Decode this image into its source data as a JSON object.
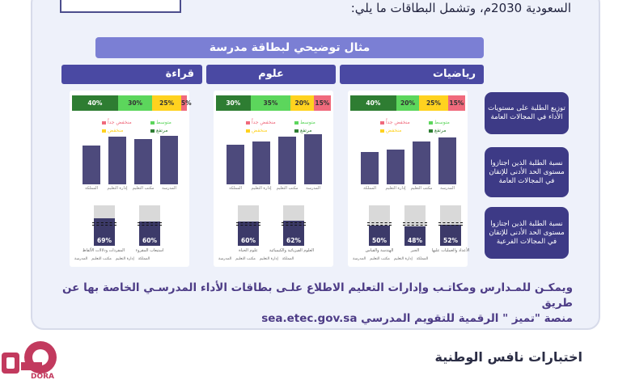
{
  "header": {
    "text": "السعودية 2030م، وتشمل البطاقات ما يلي:"
  },
  "card": {
    "title": "مثال توضيحي لبطاقة مدرسة",
    "columns": [
      "رياضيات",
      "علوم",
      "قراءة"
    ],
    "row_labels": [
      "توزيع الطلبة على مستويات الأداء في المجالات العامة",
      "نسبة الطلبة الذين اجتازوا مستوى الحد الأدنى للإتقان في المجالات العامة",
      "نسبة الطلبة الذين اجتازوا مستوى الحد الأدنى للإتقان في المجالات الفرعية"
    ],
    "legend": {
      "high": "مرتفع",
      "medium": "متوسط",
      "low": "منخفض",
      "very_low": "منخفض جداً"
    },
    "bar_labels": [
      "المدرسة",
      "مكتب التعليم",
      "إدارة التعليم",
      "المملكة"
    ],
    "gauge_legend": [
      "المدرسة",
      "مكتب التعليم",
      "إدارة التعليم",
      "المملكة"
    ],
    "colors": {
      "high": "#2e7d32",
      "medium": "#5cd65c",
      "low": "#ffd21f",
      "very_low": "#f06a7c",
      "bar": "#4d4a7c",
      "header": "#4a49a3"
    }
  },
  "subjects": [
    {
      "name": "رياضيات",
      "distribution": [
        40,
        20,
        25,
        15
      ],
      "distribution_labels": [
        "40%",
        "20%",
        "25%",
        "15%"
      ],
      "bars": [
        0.8,
        0.74,
        0.6,
        0.56
      ],
      "gauges": [
        {
          "percent": "52%",
          "label": "الأعداد والعمليات عليها",
          "value": 0.52
        },
        {
          "percent": "48%",
          "label": "الجبر",
          "value": 0.48
        },
        {
          "percent": "50%",
          "label": "الهندسة والقياس",
          "value": 0.5
        }
      ]
    },
    {
      "name": "علوم",
      "distribution": [
        30,
        35,
        20,
        15
      ],
      "distribution_labels": [
        "30%",
        "35%",
        "20%",
        "15%"
      ],
      "bars": [
        0.86,
        0.82,
        0.74,
        0.68
      ],
      "gauges": [
        {
          "percent": "62%",
          "label": "العلوم الفيزيائية والكيميائية",
          "value": 0.62
        },
        {
          "percent": "60%",
          "label": "علوم الحياة",
          "value": 0.6
        }
      ]
    },
    {
      "name": "قراءة",
      "distribution": [
        40,
        30,
        25,
        5
      ],
      "distribution_labels": [
        "40%",
        "30%",
        "25%",
        "5%"
      ],
      "bars": [
        0.84,
        0.78,
        0.82,
        0.66
      ],
      "gauges": [
        {
          "percent": "60%",
          "label": "استيعاب المقروء",
          "value": 0.6
        },
        {
          "percent": "69%",
          "label": "المفردات ودلالات الألفاظ",
          "value": 0.69
        }
      ]
    }
  ],
  "paragraph": {
    "line1": "ويمكـن للمـدارس ومكاتـب وإدارات التعليم الاطلاع علـى بطاقات الأداء المدرسـي الخاصة بها عن طريق",
    "line2": "منصة \"تميز \" الرقمية للتقويم المدرسي",
    "link": "sea.etec.gov.sa"
  },
  "bottom": {
    "title": "اختبارات نافس الوطنية"
  },
  "logo": {
    "text": "DORA"
  }
}
